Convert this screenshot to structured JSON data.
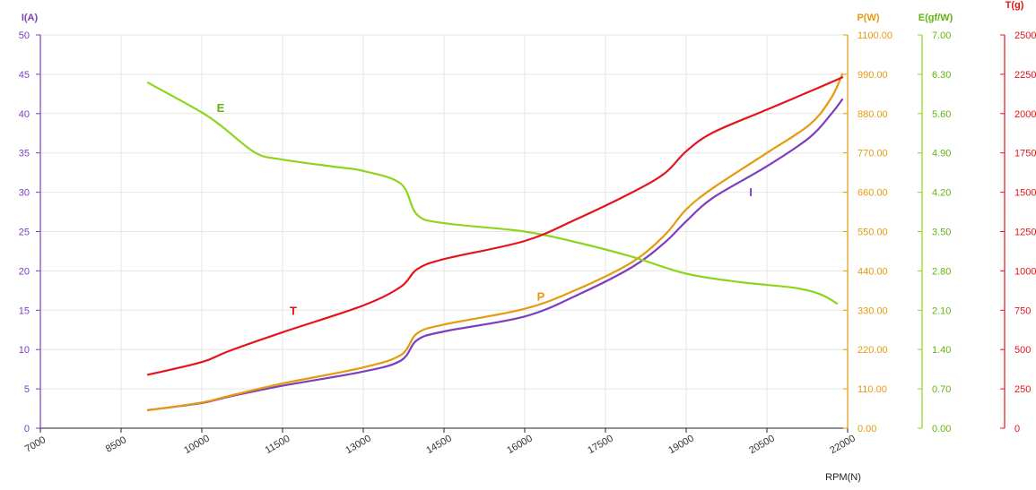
{
  "colors": {
    "current": "#7b3fbe",
    "power": "#e69a0e",
    "efficiency": "#8ed41c",
    "efficiency_text": "#62b50f",
    "thrust": "#e4141b",
    "axis": "#222222",
    "grid": "#e6e6e6"
  },
  "chart_data": {
    "type": "line",
    "grid": true,
    "legend": "none",
    "x": {
      "label": "RPM(N)",
      "ticks": [
        "7000",
        "8500",
        "10000",
        "11500",
        "13000",
        "14500",
        "16000",
        "17500",
        "19000",
        "20500",
        "22000"
      ],
      "range": [
        7000,
        22000
      ]
    },
    "axes": {
      "I": {
        "label": "I(A)",
        "ticks": [
          "0",
          "5",
          "10",
          "15",
          "20",
          "25",
          "30",
          "35",
          "40",
          "45",
          "50"
        ],
        "range": [
          0,
          50
        ]
      },
      "P": {
        "label": "P(W)",
        "ticks": [
          "0.00",
          "110.00",
          "220.00",
          "330.00",
          "440.00",
          "550.00",
          "660.00",
          "770.00",
          "880.00",
          "990.00",
          "1100.00"
        ],
        "range": [
          0,
          1100
        ]
      },
      "E": {
        "label": "E(gf/W)",
        "ticks": [
          "0.00",
          "0.70",
          "1.40",
          "2.10",
          "2.80",
          "3.50",
          "4.20",
          "4.90",
          "5.60",
          "6.30",
          "7.00"
        ],
        "range": [
          0,
          7
        ]
      },
      "T": {
        "label": "T(g)",
        "ticks": [
          "0",
          "250",
          "500",
          "750",
          "1000",
          "1250",
          "1500",
          "1750",
          "2000",
          "2250",
          "2500"
        ],
        "range": [
          0,
          2500
        ]
      }
    },
    "series": [
      {
        "name": "I",
        "axis": "I",
        "color_key": "current",
        "label_at": [
          20200,
          29.5
        ],
        "points": [
          [
            9000,
            2.3
          ],
          [
            10000,
            3.2
          ],
          [
            10500,
            4.0
          ],
          [
            11500,
            5.4
          ],
          [
            13000,
            7.2
          ],
          [
            13700,
            8.6
          ],
          [
            14000,
            11.2
          ],
          [
            14500,
            12.3
          ],
          [
            16000,
            14.2
          ],
          [
            17000,
            17.0
          ],
          [
            18000,
            20.5
          ],
          [
            18600,
            23.6
          ],
          [
            19000,
            26.3
          ],
          [
            19500,
            29.3
          ],
          [
            20500,
            33.3
          ],
          [
            21300,
            37.0
          ],
          [
            21700,
            40.0
          ],
          [
            21900,
            41.8
          ]
        ]
      },
      {
        "name": "P",
        "axis": "P",
        "color_key": "power",
        "label_at": [
          16300,
          357
        ],
        "points": [
          [
            9000,
            50
          ],
          [
            10000,
            72
          ],
          [
            10500,
            90
          ],
          [
            11500,
            125
          ],
          [
            13000,
            170
          ],
          [
            13700,
            205
          ],
          [
            14000,
            265
          ],
          [
            14500,
            290
          ],
          [
            16000,
            334
          ],
          [
            17000,
            390
          ],
          [
            18000,
            465
          ],
          [
            18600,
            540
          ],
          [
            19000,
            612
          ],
          [
            19500,
            672
          ],
          [
            20500,
            770
          ],
          [
            21300,
            850
          ],
          [
            21700,
            925
          ],
          [
            21900,
            990
          ]
        ]
      },
      {
        "name": "E",
        "axis": "E",
        "color_key": "efficiency",
        "label_at": [
          10350,
          5.63
        ],
        "points": [
          [
            9000,
            6.15
          ],
          [
            10000,
            5.62
          ],
          [
            10400,
            5.35
          ],
          [
            11000,
            4.9
          ],
          [
            11500,
            4.78
          ],
          [
            12500,
            4.65
          ],
          [
            13000,
            4.58
          ],
          [
            13700,
            4.35
          ],
          [
            14000,
            3.8
          ],
          [
            14500,
            3.65
          ],
          [
            16000,
            3.5
          ],
          [
            17000,
            3.3
          ],
          [
            18000,
            3.05
          ],
          [
            19000,
            2.75
          ],
          [
            20000,
            2.6
          ],
          [
            21000,
            2.5
          ],
          [
            21500,
            2.38
          ],
          [
            21800,
            2.22
          ]
        ]
      },
      {
        "name": "T",
        "axis": "T",
        "color_key": "thrust",
        "label_at": [
          11700,
          720
        ],
        "points": [
          [
            9000,
            340
          ],
          [
            10000,
            420
          ],
          [
            10500,
            490
          ],
          [
            11500,
            610
          ],
          [
            13000,
            780
          ],
          [
            13700,
            900
          ],
          [
            14000,
            1010
          ],
          [
            14500,
            1075
          ],
          [
            16000,
            1190
          ],
          [
            17000,
            1335
          ],
          [
            18000,
            1500
          ],
          [
            18600,
            1620
          ],
          [
            19000,
            1760
          ],
          [
            19500,
            1880
          ],
          [
            20500,
            2025
          ],
          [
            21500,
            2170
          ],
          [
            21900,
            2230
          ]
        ]
      }
    ]
  }
}
